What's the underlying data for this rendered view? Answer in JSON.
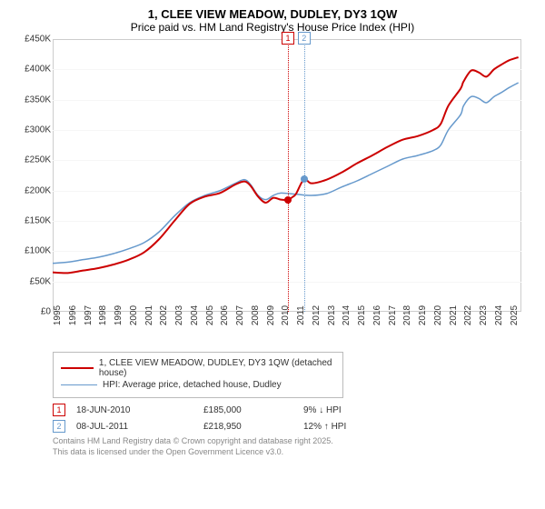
{
  "title_line1": "1, CLEE VIEW MEADOW, DUDLEY, DY3 1QW",
  "title_line2": "Price paid vs. HM Land Registry's House Price Index (HPI)",
  "chart": {
    "type": "line",
    "background_color": "#ffffff",
    "border_color": "#cccccc",
    "grid_color": "#f6f6f6",
    "xlim": [
      1995,
      2025.8
    ],
    "ylim": [
      0,
      450000
    ],
    "y_ticks": [
      0,
      50000,
      100000,
      150000,
      200000,
      250000,
      300000,
      350000,
      400000,
      450000
    ],
    "y_tick_labels": [
      "£0",
      "£50K",
      "£100K",
      "£150K",
      "£200K",
      "£250K",
      "£300K",
      "£350K",
      "£400K",
      "£450K"
    ],
    "x_ticks": [
      1995,
      1996,
      1997,
      1998,
      1999,
      2000,
      2001,
      2002,
      2003,
      2004,
      2005,
      2006,
      2007,
      2008,
      2009,
      2010,
      2011,
      2012,
      2013,
      2014,
      2015,
      2016,
      2017,
      2018,
      2019,
      2020,
      2021,
      2022,
      2023,
      2024,
      2025
    ],
    "label_fontsize": 10,
    "label_color": "#333333",
    "series": {
      "red": {
        "color": "#cc0000",
        "width": 2,
        "points": [
          [
            1995,
            65000
          ],
          [
            1996,
            64000
          ],
          [
            1997,
            68000
          ],
          [
            1998,
            72000
          ],
          [
            1999,
            78000
          ],
          [
            2000,
            86000
          ],
          [
            2001,
            98000
          ],
          [
            2002,
            120000
          ],
          [
            2003,
            150000
          ],
          [
            2004,
            178000
          ],
          [
            2005,
            190000
          ],
          [
            2006,
            196000
          ],
          [
            2007,
            210000
          ],
          [
            2007.6,
            215000
          ],
          [
            2008,
            208000
          ],
          [
            2008.5,
            190000
          ],
          [
            2009,
            180000
          ],
          [
            2009.5,
            188000
          ],
          [
            2010,
            185000
          ],
          [
            2010.46,
            185000
          ],
          [
            2010.8,
            190000
          ],
          [
            2011,
            195000
          ],
          [
            2011.52,
            218950
          ],
          [
            2012,
            212000
          ],
          [
            2013,
            218000
          ],
          [
            2014,
            230000
          ],
          [
            2015,
            245000
          ],
          [
            2016,
            258000
          ],
          [
            2017,
            272000
          ],
          [
            2018,
            284000
          ],
          [
            2019,
            290000
          ],
          [
            2020,
            300000
          ],
          [
            2020.5,
            310000
          ],
          [
            2021,
            340000
          ],
          [
            2021.8,
            368000
          ],
          [
            2022,
            380000
          ],
          [
            2022.5,
            398000
          ],
          [
            2023,
            395000
          ],
          [
            2023.5,
            388000
          ],
          [
            2024,
            400000
          ],
          [
            2024.5,
            408000
          ],
          [
            2025,
            415000
          ],
          [
            2025.6,
            420000
          ]
        ]
      },
      "blue": {
        "color": "#6699cc",
        "width": 1.5,
        "points": [
          [
            1995,
            80000
          ],
          [
            1996,
            82000
          ],
          [
            1997,
            86000
          ],
          [
            1998,
            90000
          ],
          [
            1999,
            96000
          ],
          [
            2000,
            104000
          ],
          [
            2001,
            114000
          ],
          [
            2002,
            132000
          ],
          [
            2003,
            158000
          ],
          [
            2004,
            180000
          ],
          [
            2005,
            192000
          ],
          [
            2006,
            200000
          ],
          [
            2007,
            212000
          ],
          [
            2007.6,
            218000
          ],
          [
            2008,
            210000
          ],
          [
            2008.5,
            192000
          ],
          [
            2009,
            185000
          ],
          [
            2009.5,
            192000
          ],
          [
            2010,
            196000
          ],
          [
            2011,
            194000
          ],
          [
            2012,
            192000
          ],
          [
            2013,
            195000
          ],
          [
            2014,
            206000
          ],
          [
            2015,
            216000
          ],
          [
            2016,
            228000
          ],
          [
            2017,
            240000
          ],
          [
            2018,
            252000
          ],
          [
            2019,
            258000
          ],
          [
            2020,
            266000
          ],
          [
            2020.5,
            275000
          ],
          [
            2021,
            300000
          ],
          [
            2021.8,
            325000
          ],
          [
            2022,
            340000
          ],
          [
            2022.5,
            355000
          ],
          [
            2023,
            352000
          ],
          [
            2023.5,
            345000
          ],
          [
            2024,
            355000
          ],
          [
            2024.5,
            362000
          ],
          [
            2025,
            370000
          ],
          [
            2025.6,
            378000
          ]
        ]
      }
    },
    "sale_markers": [
      {
        "label": "1",
        "x": 2010.46,
        "y": 185000,
        "color": "#cc0000"
      },
      {
        "label": "2",
        "x": 2011.52,
        "y": 218950,
        "color": "#6699cc"
      }
    ]
  },
  "legend": {
    "items": [
      {
        "color": "#cc0000",
        "width": 2,
        "text": "1, CLEE VIEW MEADOW, DUDLEY, DY3 1QW (detached house)"
      },
      {
        "color": "#6699cc",
        "width": 1.5,
        "text": "HPI: Average price, detached house, Dudley"
      }
    ]
  },
  "footnotes": [
    {
      "marker": "1",
      "marker_color": "#cc0000",
      "date": "18-JUN-2010",
      "price": "£185,000",
      "pct": "9% ↓ HPI"
    },
    {
      "marker": "2",
      "marker_color": "#6699cc",
      "date": "08-JUL-2011",
      "price": "£218,950",
      "pct": "12% ↑ HPI"
    }
  ],
  "attribution": {
    "line1": "Contains HM Land Registry data © Crown copyright and database right 2025.",
    "line2": "This data is licensed under the Open Government Licence v3.0."
  }
}
